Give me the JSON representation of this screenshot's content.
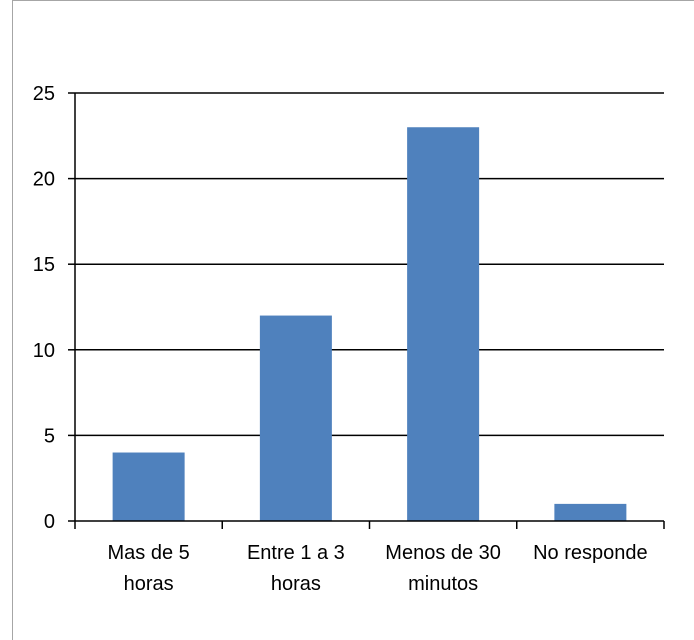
{
  "chart_data": {
    "type": "bar",
    "title": "",
    "xlabel": "",
    "ylabel": "",
    "categories": [
      [
        "Mas de 5",
        "horas"
      ],
      [
        "Entre 1 a 3",
        "horas"
      ],
      [
        "Menos de 30",
        "minutos"
      ],
      [
        "No responde"
      ]
    ],
    "values": [
      4,
      12,
      23,
      1
    ],
    "ylim": [
      0,
      25
    ],
    "yticks": [
      "0",
      "5",
      "10",
      "15",
      "20",
      "25"
    ],
    "grid": true,
    "legend": "none",
    "colors": {
      "bar": "#4f81bd",
      "grid": "#000000",
      "axis": "#000000",
      "frame": "#a6a6a6"
    }
  }
}
